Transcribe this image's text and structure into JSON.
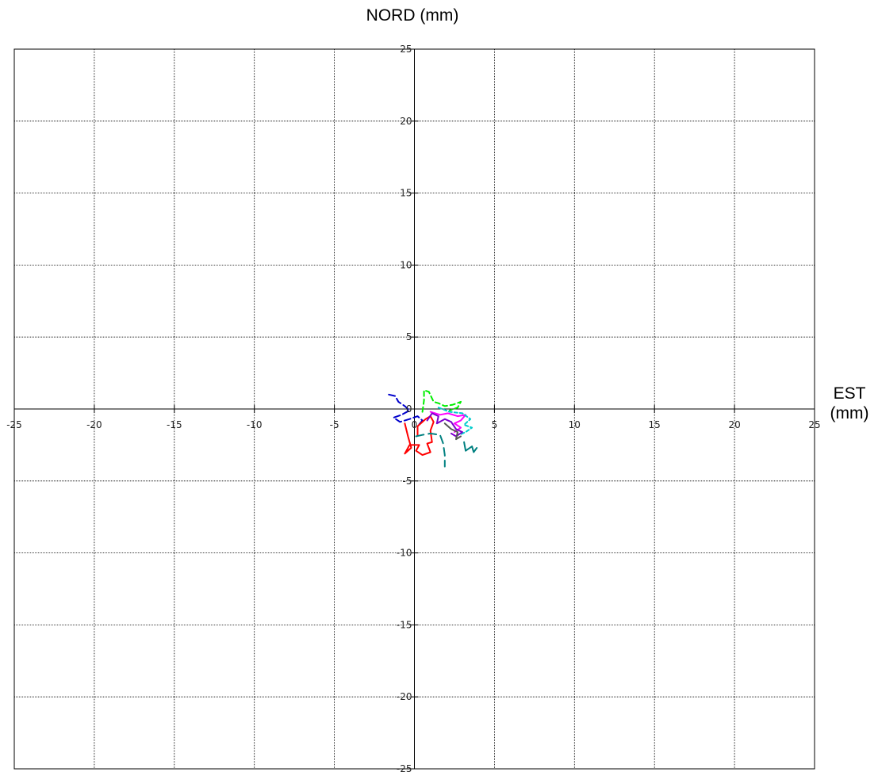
{
  "chart_data": {
    "type": "line",
    "title": "",
    "ylabel": "NORD (mm)",
    "xlabel": "EST (mm)",
    "xlim": [
      -25,
      25
    ],
    "ylim": [
      -25,
      25
    ],
    "xticks": [
      -25,
      -20,
      -15,
      -10,
      -5,
      0,
      5,
      10,
      15,
      20,
      25
    ],
    "yticks": [
      25,
      20,
      15,
      10,
      5,
      0,
      -5,
      -10,
      -15,
      -20,
      -25
    ],
    "grid": true,
    "grid_style": "dotted",
    "series": [
      {
        "color": "#0000cc",
        "dash": "8,4",
        "points": [
          [
            -1.6,
            1.0
          ],
          [
            -1.2,
            0.9
          ],
          [
            -1.0,
            0.5
          ],
          [
            -0.6,
            0.2
          ],
          [
            -0.3,
            -0.1
          ],
          [
            -0.8,
            -0.4
          ],
          [
            -1.3,
            -0.6
          ],
          [
            -0.9,
            -0.9
          ],
          [
            -0.3,
            -0.7
          ],
          [
            0.2,
            -0.5
          ],
          [
            0.5,
            -0.8
          ],
          [
            0.2,
            -1.2
          ]
        ]
      },
      {
        "color": "#ff0000",
        "dash": "none",
        "points": [
          [
            -0.6,
            -1.0
          ],
          [
            -0.4,
            -1.9
          ],
          [
            -0.2,
            -2.7
          ],
          [
            -0.6,
            -3.1
          ],
          [
            -0.3,
            -2.5
          ],
          [
            0.3,
            -2.5
          ],
          [
            0.1,
            -2.9
          ],
          [
            0.5,
            -3.2
          ],
          [
            1.0,
            -3.0
          ],
          [
            0.8,
            -2.4
          ],
          [
            1.1,
            -2.3
          ],
          [
            1.0,
            -1.5
          ],
          [
            1.2,
            -0.9
          ],
          [
            1.0,
            -0.5
          ],
          [
            0.7,
            -0.7
          ],
          [
            0.2,
            -1.2
          ],
          [
            0.2,
            -1.8
          ]
        ]
      },
      {
        "color": "#00ee00",
        "dash": "6,4",
        "points": [
          [
            0.5,
            -0.2
          ],
          [
            0.6,
            0.6
          ],
          [
            0.6,
            1.3
          ],
          [
            0.9,
            1.2
          ],
          [
            1.2,
            0.5
          ],
          [
            1.5,
            0.4
          ],
          [
            1.9,
            0.2
          ],
          [
            2.4,
            0.3
          ],
          [
            2.9,
            0.5
          ],
          [
            2.7,
            0.1
          ],
          [
            2.2,
            -0.1
          ]
        ]
      },
      {
        "color": "#ff00ff",
        "dash": "none",
        "points": [
          [
            1.0,
            -0.2
          ],
          [
            1.6,
            -0.4
          ],
          [
            2.1,
            -0.3
          ],
          [
            2.7,
            -0.5
          ],
          [
            3.2,
            -0.4
          ],
          [
            2.9,
            -0.8
          ],
          [
            2.5,
            -1.0
          ],
          [
            2.9,
            -1.3
          ],
          [
            2.5,
            -1.6
          ]
        ]
      },
      {
        "color": "#00cccc",
        "dash": "4,3",
        "points": [
          [
            1.5,
            0.1
          ],
          [
            2.2,
            -0.2
          ],
          [
            3.0,
            -0.3
          ],
          [
            3.5,
            -0.7
          ],
          [
            3.1,
            -1.1
          ],
          [
            3.6,
            -1.3
          ],
          [
            3.2,
            -1.6
          ],
          [
            2.8,
            -1.8
          ]
        ]
      },
      {
        "color": "#7b00cc",
        "dash": "none",
        "points": [
          [
            0.8,
            -0.8
          ],
          [
            1.1,
            -0.3
          ],
          [
            1.5,
            -0.5
          ],
          [
            1.4,
            -1.0
          ],
          [
            1.9,
            -0.7
          ],
          [
            2.3,
            -0.9
          ],
          [
            2.6,
            -1.4
          ],
          [
            3.0,
            -1.6
          ],
          [
            2.6,
            -1.9
          ],
          [
            2.3,
            -1.7
          ]
        ]
      },
      {
        "color": "#008080",
        "dash": "10,6",
        "points": [
          [
            0.1,
            -1.9
          ],
          [
            0.5,
            -1.8
          ],
          [
            1.0,
            -1.7
          ],
          [
            1.6,
            -1.8
          ],
          [
            1.8,
            -2.4
          ],
          [
            1.9,
            -3.2
          ],
          [
            1.9,
            -4.0
          ]
        ]
      },
      {
        "color": "#008080",
        "dash": "none",
        "points": [
          [
            3.1,
            -2.3
          ],
          [
            3.2,
            -2.9
          ],
          [
            3.6,
            -2.6
          ],
          [
            3.7,
            -3.0
          ],
          [
            3.9,
            -2.7
          ]
        ]
      },
      {
        "color": "#555555",
        "dash": "none",
        "points": [
          [
            1.9,
            -1.0
          ],
          [
            2.3,
            -1.4
          ],
          [
            2.7,
            -1.6
          ],
          [
            2.6,
            -2.1
          ],
          [
            2.9,
            -1.9
          ]
        ]
      }
    ]
  }
}
